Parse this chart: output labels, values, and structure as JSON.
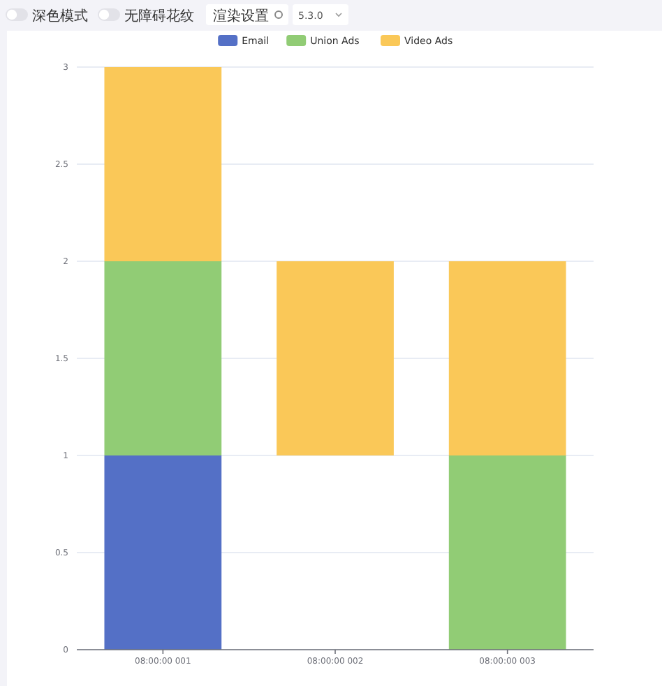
{
  "chart_data": {
    "type": "bar",
    "categories": [
      "08:00:00 001",
      "08:00:00 002",
      "08:00:00 003"
    ],
    "series": [
      {
        "name": "Email",
        "color": "#5470c6",
        "values": [
          1,
          null,
          null
        ],
        "base": [
          0,
          null,
          null
        ]
      },
      {
        "name": "Union Ads",
        "color": "#91cc75",
        "values": [
          1,
          null,
          1
        ],
        "base": [
          1,
          null,
          0
        ]
      },
      {
        "name": "Video Ads",
        "color": "#fac858",
        "values": [
          1,
          1,
          1
        ],
        "base": [
          2,
          1,
          1
        ]
      }
    ],
    "ylim": [
      0,
      3
    ],
    "yticks": [
      0,
      0.5,
      1,
      1.5,
      2,
      2.5,
      3
    ],
    "grid": "y",
    "legend": "top",
    "annotations": [
      "深色模式",
      "无障碍花纹",
      "渲染设置",
      "5.3.0"
    ]
  }
}
